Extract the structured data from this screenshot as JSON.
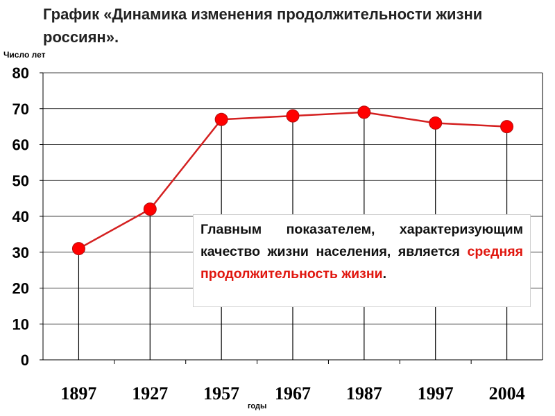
{
  "header": {
    "title": "График «Динамика изменения продолжительности жизни россиян»."
  },
  "note": {
    "text_main": "Главным показателем, характеризующим качество жизни населения, является",
    "text_highlight": "средняя продолжительность жизни",
    "text_end": "."
  },
  "colors": {
    "line": "#d42020",
    "marker": "#ff0000",
    "highlight_text": "#e0160e",
    "axis": "#000000",
    "grid": "#000000"
  },
  "chart_data": {
    "type": "line",
    "title": "",
    "xlabel": "годы",
    "ylabel": "Число лет",
    "categories": [
      "1897",
      "1927",
      "1957",
      "1967",
      "1987",
      "1997",
      "2004"
    ],
    "series": [
      {
        "values": [
          31,
          42,
          67,
          68,
          69,
          66,
          65
        ]
      }
    ],
    "ylim": [
      0,
      80
    ],
    "yticks": [
      "0",
      "10",
      "20",
      "30",
      "40",
      "50",
      "60",
      "70",
      "80"
    ],
    "grid": true,
    "drop_lines": true,
    "marker": "circle",
    "legend": "none"
  }
}
